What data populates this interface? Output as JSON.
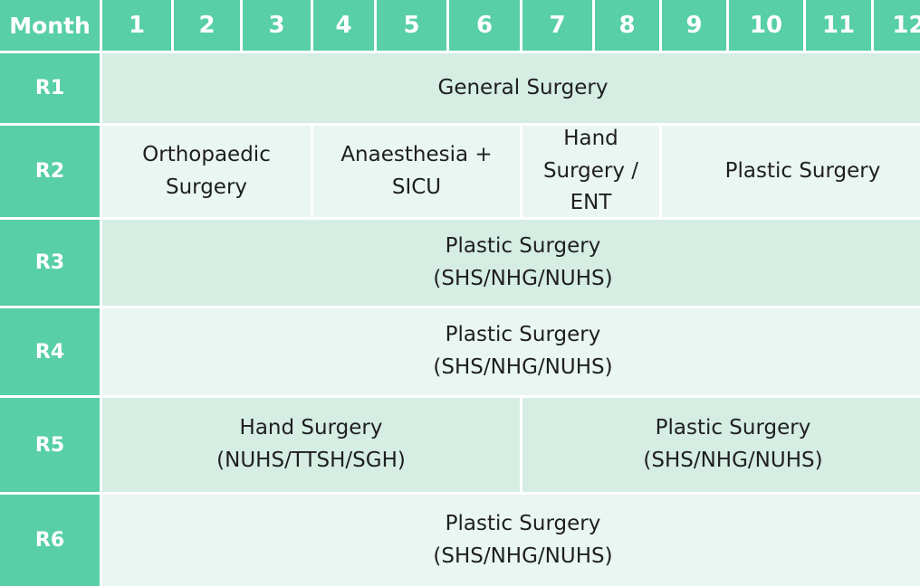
{
  "header": {
    "corner_label": "Month",
    "months": [
      "1",
      "2",
      "3",
      "4",
      "5",
      "6",
      "7",
      "8",
      "9",
      "10",
      "11",
      "12"
    ]
  },
  "rows": [
    {
      "label": "R1",
      "blocks": [
        {
          "name": "General Surgery",
          "detail": "",
          "start": 1,
          "end": 12,
          "shade": "dark"
        }
      ]
    },
    {
      "label": "R2",
      "blocks": [
        {
          "name": "Orthopaedic",
          "detail": "Surgery",
          "start": 1,
          "end": 3,
          "shade": "light"
        },
        {
          "name": "Anaesthesia +",
          "detail": "SICU",
          "start": 4,
          "end": 6,
          "shade": "light"
        },
        {
          "name": "Hand Surgery /",
          "detail": "ENT",
          "start": 7,
          "end": 8,
          "shade": "light"
        },
        {
          "name": "Plastic Surgery",
          "detail": "",
          "start": 9,
          "end": 12,
          "shade": "light"
        }
      ]
    },
    {
      "label": "R3",
      "blocks": [
        {
          "name": "Plastic Surgery",
          "detail": "(SHS/NHG/NUHS)",
          "start": 1,
          "end": 12,
          "shade": "dark"
        }
      ]
    },
    {
      "label": "R4",
      "blocks": [
        {
          "name": "Plastic Surgery",
          "detail": "(SHS/NHG/NUHS)",
          "start": 1,
          "end": 12,
          "shade": "light"
        }
      ]
    },
    {
      "label": "R5",
      "blocks": [
        {
          "name": "Hand Surgery",
          "detail": "(NUHS/TTSH/SGH)",
          "start": 1,
          "end": 6,
          "shade": "dark"
        },
        {
          "name": "Plastic Surgery",
          "detail": "(SHS/NHG/NUHS)",
          "start": 7,
          "end": 12,
          "shade": "dark"
        }
      ]
    },
    {
      "label": "R6",
      "blocks": [
        {
          "name": "Plastic Surgery",
          "detail": "(SHS/NHG/NUHS)",
          "start": 1,
          "end": 12,
          "shade": "light"
        }
      ]
    }
  ],
  "colors": {
    "header_green": "#58cfa6",
    "block_dark": "#d5ede3",
    "block_light": "#e9f6f1",
    "text": "#1f1f1f"
  }
}
